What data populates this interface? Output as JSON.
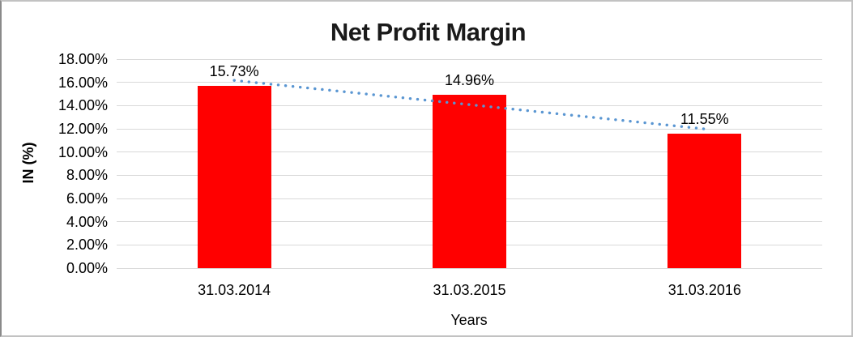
{
  "chart_data": {
    "type": "bar",
    "title": "Net Profit Margin",
    "xlabel": "Years",
    "ylabel": "IN (%)",
    "categories": [
      "31.03.2014",
      "31.03.2015",
      "31.03.2016"
    ],
    "values": [
      15.73,
      14.96,
      11.55
    ],
    "value_labels": [
      "15.73%",
      "14.96%",
      "11.55%"
    ],
    "ytick_labels": [
      "0.00%",
      "2.00%",
      "4.00%",
      "6.00%",
      "8.00%",
      "10.00%",
      "12.00%",
      "14.00%",
      "16.00%",
      "18.00%"
    ],
    "ylim": [
      0,
      18
    ],
    "ytick_step": 2,
    "grid": true,
    "legend": "none",
    "bar_color": "#ff0000",
    "gridline_color": "#d9d9d9",
    "trendline": {
      "type": "linear",
      "style": "dotted",
      "color": "#5a96d2"
    },
    "text_color": "#000000"
  }
}
